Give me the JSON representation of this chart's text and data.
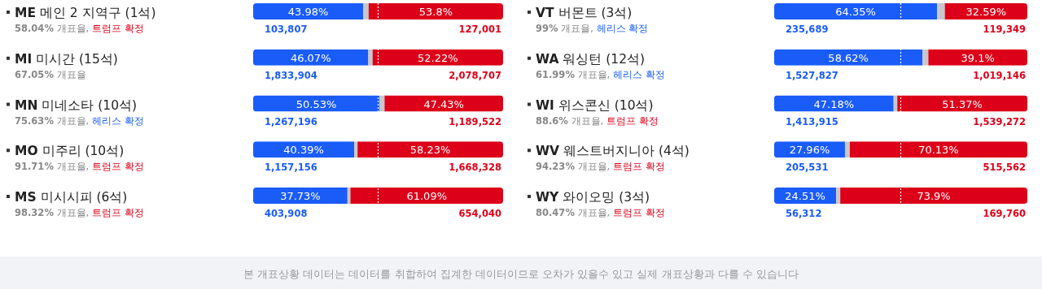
{
  "chart_data": [
    {
      "type": "bar",
      "orientation": "horizontal",
      "stacked": true,
      "tick_labels": "y",
      "xlim": [
        0,
        100
      ],
      "categories": [
        "**ME** 메인 2 지역구 (1석)",
        "**MI** 미시간 (15석)",
        "**MN** 미네소타 (10석)",
        "**MO** 미주리 (10석)",
        "**MS** 미시시피 (6석)"
      ],
      "series": [
        {
          "color": "#1a5cf8",
          "values": [
            43.98,
            46.07,
            50.53,
            40.39,
            37.73
          ],
          "value_labels": [
            "43.98%",
            "46.07%",
            "50.53%",
            "40.39%",
            "37.73%"
          ]
        },
        {
          "color": "#c8c8cc",
          "values": [
            2.22,
            1.71,
            2.04,
            1.38,
            1.18
          ]
        },
        {
          "color": "#dc0019",
          "values": [
            53.8,
            52.22,
            47.43,
            58.23,
            61.09
          ],
          "value_labels": [
            "53.8%",
            "52.22%",
            "47.43%",
            "58.23%",
            "61.09%"
          ]
        }
      ],
      "ref_lines": [
        {
          "axis": "x",
          "value": 50,
          "color": "#ffffff",
          "line_style": "dotted"
        }
      ],
      "annotations": [
        "**58.04%** 개표율, 트럼프 확정",
        "103,807",
        "127,001",
        "**67.05%** 개표율",
        "1,833,904",
        "2,078,707",
        "**75.63%** 개표율, 헤리스 확정",
        "1,267,196",
        "1,189,522",
        "**91.71%** 개표율, 트럼프 확정",
        "1,157,156",
        "1,668,328",
        "**98.32%** 개표율, 트럼프 확정",
        "403,908",
        "654,040"
      ]
    },
    {
      "type": "bar",
      "orientation": "horizontal",
      "stacked": true,
      "tick_labels": "y",
      "xlim": [
        0,
        100
      ],
      "categories": [
        "**VT** 버몬트 (3석)",
        "**WA** 워싱턴 (12석)",
        "**WI** 위스콘신 (10석)",
        "**WV** 웨스트버지니아 (4석)",
        "**WY** 와이오밍 (3석)"
      ],
      "series": [
        {
          "color": "#1a5cf8",
          "values": [
            64.35,
            58.62,
            47.18,
            27.96,
            24.51
          ],
          "value_labels": [
            "64.35%",
            "58.62%",
            "47.18%",
            "27.96%",
            "24.51%"
          ]
        },
        {
          "color": "#c8c8cc",
          "values": [
            3.06,
            2.28,
            1.45,
            1.91,
            1.59
          ]
        },
        {
          "color": "#dc0019",
          "values": [
            32.59,
            39.1,
            51.37,
            70.13,
            73.9
          ],
          "value_labels": [
            "32.59%",
            "39.1%",
            "51.37%",
            "70.13%",
            "73.9%"
          ]
        }
      ],
      "ref_lines": [
        {
          "axis": "x",
          "value": 50,
          "color": "#ffffff",
          "line_style": "dotted"
        }
      ],
      "annotations": [
        "**99%** 개표율, 헤리스 확정",
        "235,689",
        "119,349",
        "**61.99%** 개표율, 헤리스 확정",
        "1,527,827",
        "1,019,146",
        "**88.6%** 개표율, 트럼프 확정",
        "1,413,915",
        "1,539,272",
        "**94.23%** 개표율, 트럼프 확정",
        "205,531",
        "515,562",
        "**80.47%** 개표율, 트럼프 확정",
        "56,312",
        "169,760",
        "본 개표상황 데이터는 데이터를 취합하여 집계한 데이터이므로 오차가 있을수 있고 실제 개표상황과 다를 수 있습니다"
      ]
    }
  ]
}
